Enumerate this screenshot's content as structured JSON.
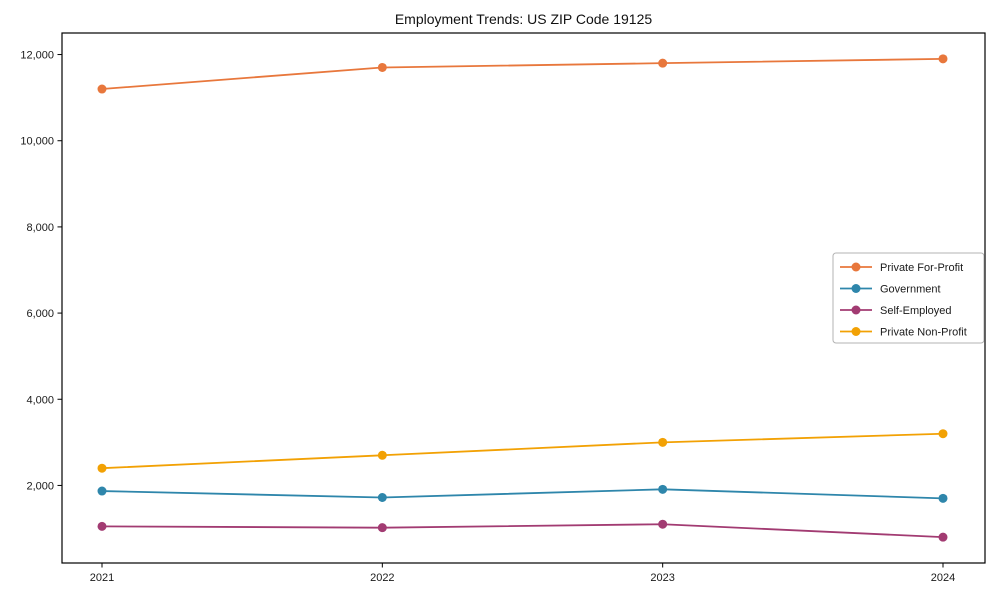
{
  "title": "Employment Trends: US ZIP Code 19125",
  "chart_data": {
    "type": "line",
    "title": "Employment Trends: US ZIP Code 19125",
    "categories": [
      "2021",
      "2022",
      "2023",
      "2024"
    ],
    "series": [
      {
        "name": "Private For-Profit",
        "color": "#E8773C",
        "values": [
          11200,
          11700,
          11800,
          11900
        ]
      },
      {
        "name": "Government",
        "color": "#2E86AB",
        "values": [
          1870,
          1720,
          1910,
          1700
        ]
      },
      {
        "name": "Self-Employed",
        "color": "#A23B72",
        "values": [
          1050,
          1020,
          1100,
          800
        ]
      },
      {
        "name": "Private Non-Profit",
        "color": "#F2A104",
        "values": [
          2400,
          2700,
          3000,
          3200
        ]
      }
    ],
    "xlabel": "",
    "ylabel": "",
    "ylim": [
      200,
      12500
    ],
    "yticks": [
      2000,
      4000,
      6000,
      8000,
      10000,
      12000
    ],
    "ytick_labels": [
      "2,000",
      "4,000",
      "6,000",
      "8,000",
      "10,000",
      "12,000"
    ],
    "grid": false,
    "legend_position": "right-middle",
    "axis_color": "#000000",
    "tick_label_color": "#1a1a1a",
    "legend_border_color": "#b3b3b3"
  }
}
